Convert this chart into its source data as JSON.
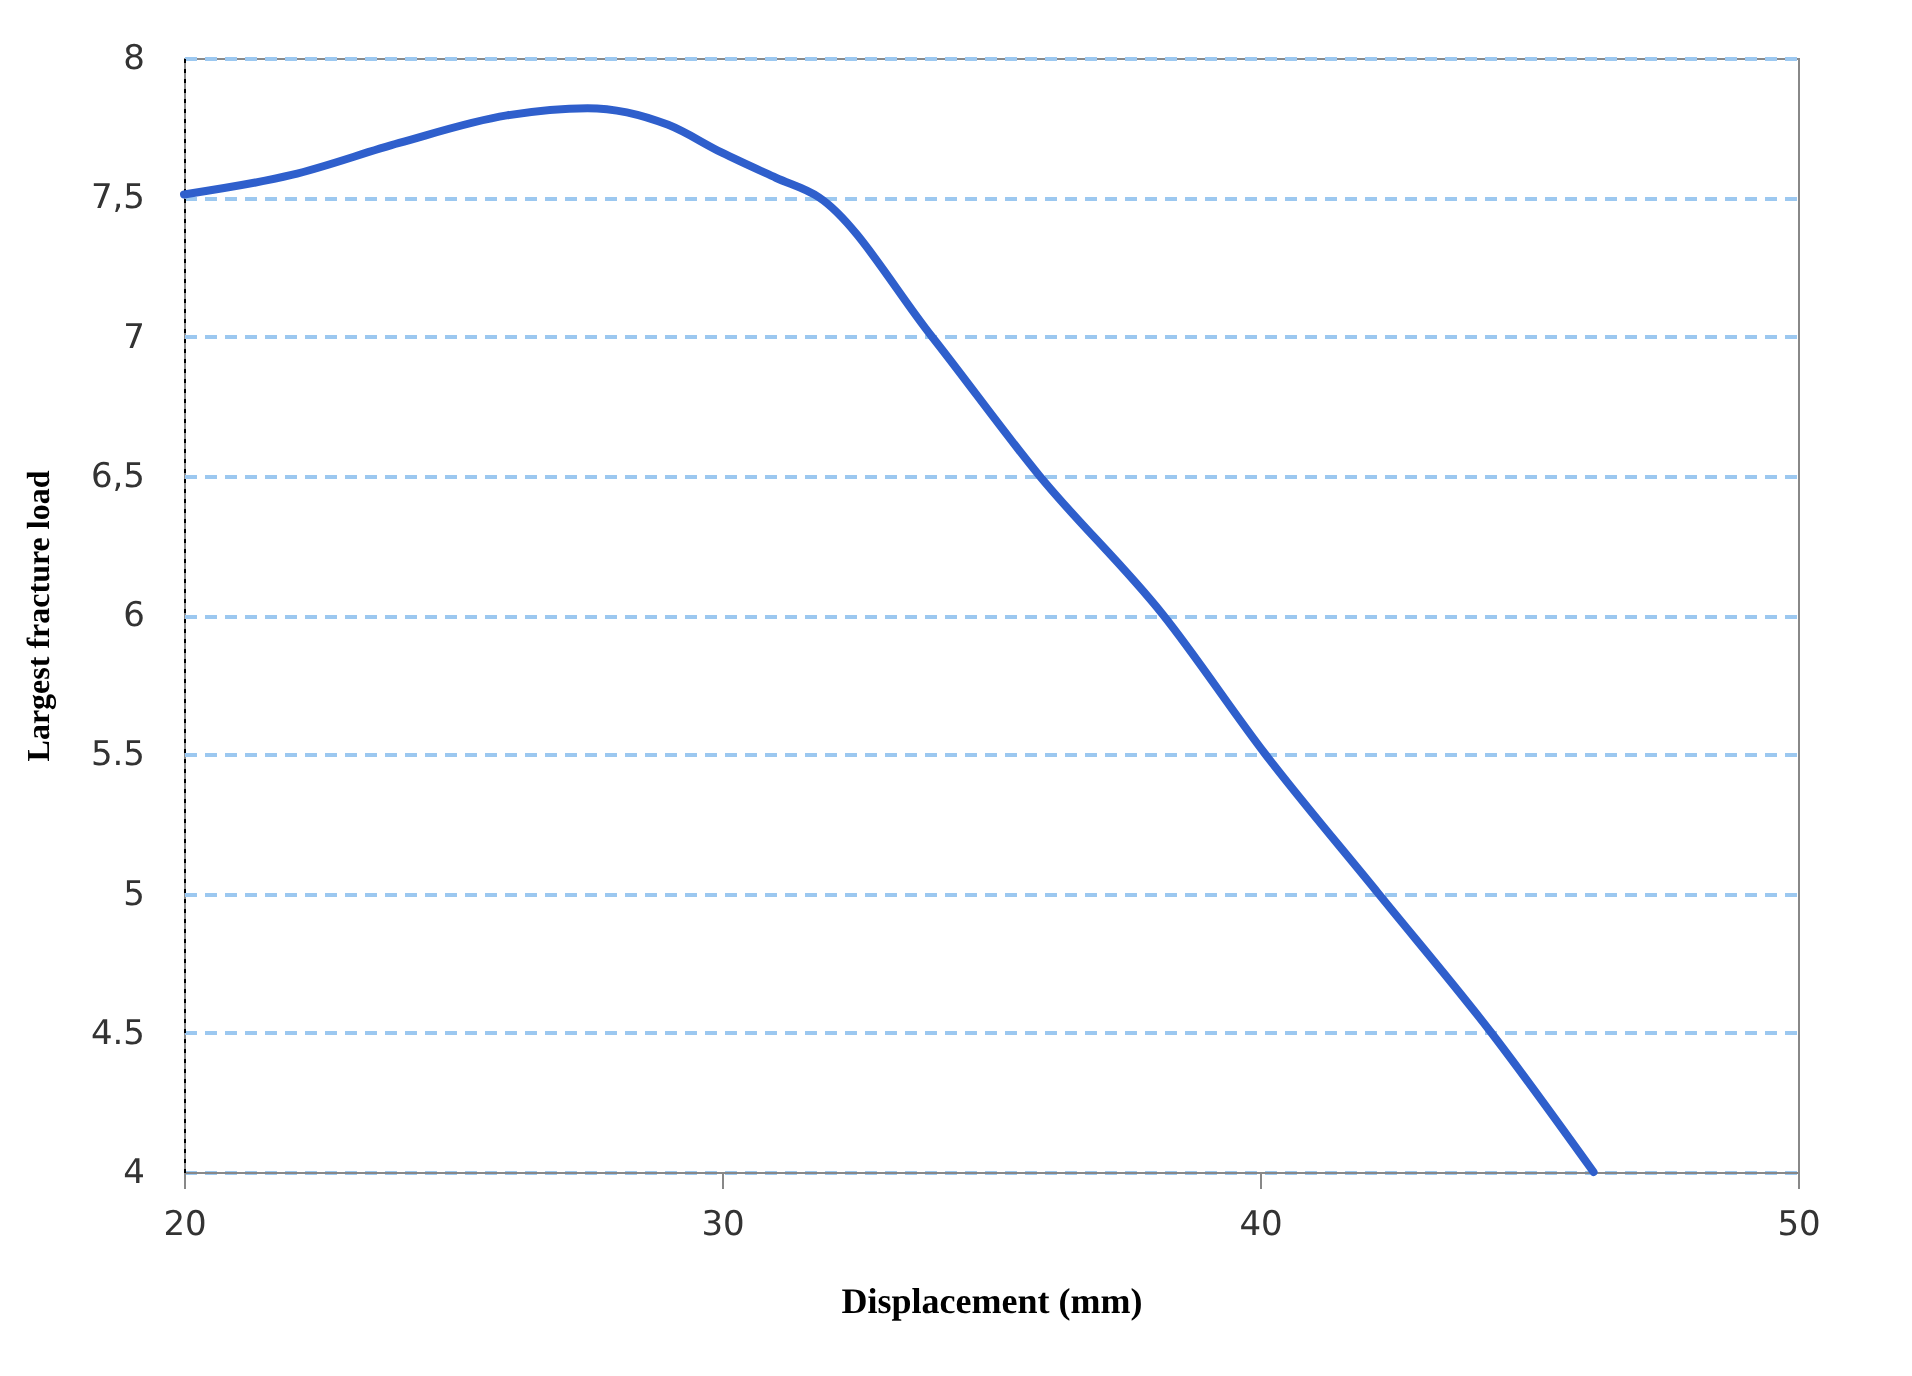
{
  "chart_data": {
    "type": "line",
    "xlabel": "Displacement (mm)",
    "ylabel": "Largest fracture load",
    "x": [
      20,
      22,
      24,
      26,
      27.5,
      29,
      30,
      31,
      31.8,
      33.9,
      35.9,
      38.2,
      40.1,
      42.2,
      44.3,
      46.2
    ],
    "series": [
      {
        "color": "#2f5fcc",
        "values": [
          7.51,
          7.58,
          7.695,
          7.794,
          7.82,
          7.76,
          7.66,
          7.57,
          7.5,
          7.0,
          6.5,
          6.0,
          5.5,
          5.0,
          4.5,
          4.0
        ]
      }
    ],
    "xlim": [
      20,
      50
    ],
    "xticks": [
      20,
      30,
      40,
      50
    ],
    "ylim": [
      4,
      8
    ],
    "yticks": [
      4,
      {
        "value": 4.5,
        "label": "4.5"
      },
      5,
      {
        "value": 5.5,
        "label": "5.5"
      },
      6,
      {
        "value": 6.5,
        "label": "6,5"
      },
      7,
      {
        "value": 7.5,
        "label": "7,5"
      },
      8
    ],
    "grid": "y",
    "marker": "none",
    "line_style": "solid"
  }
}
